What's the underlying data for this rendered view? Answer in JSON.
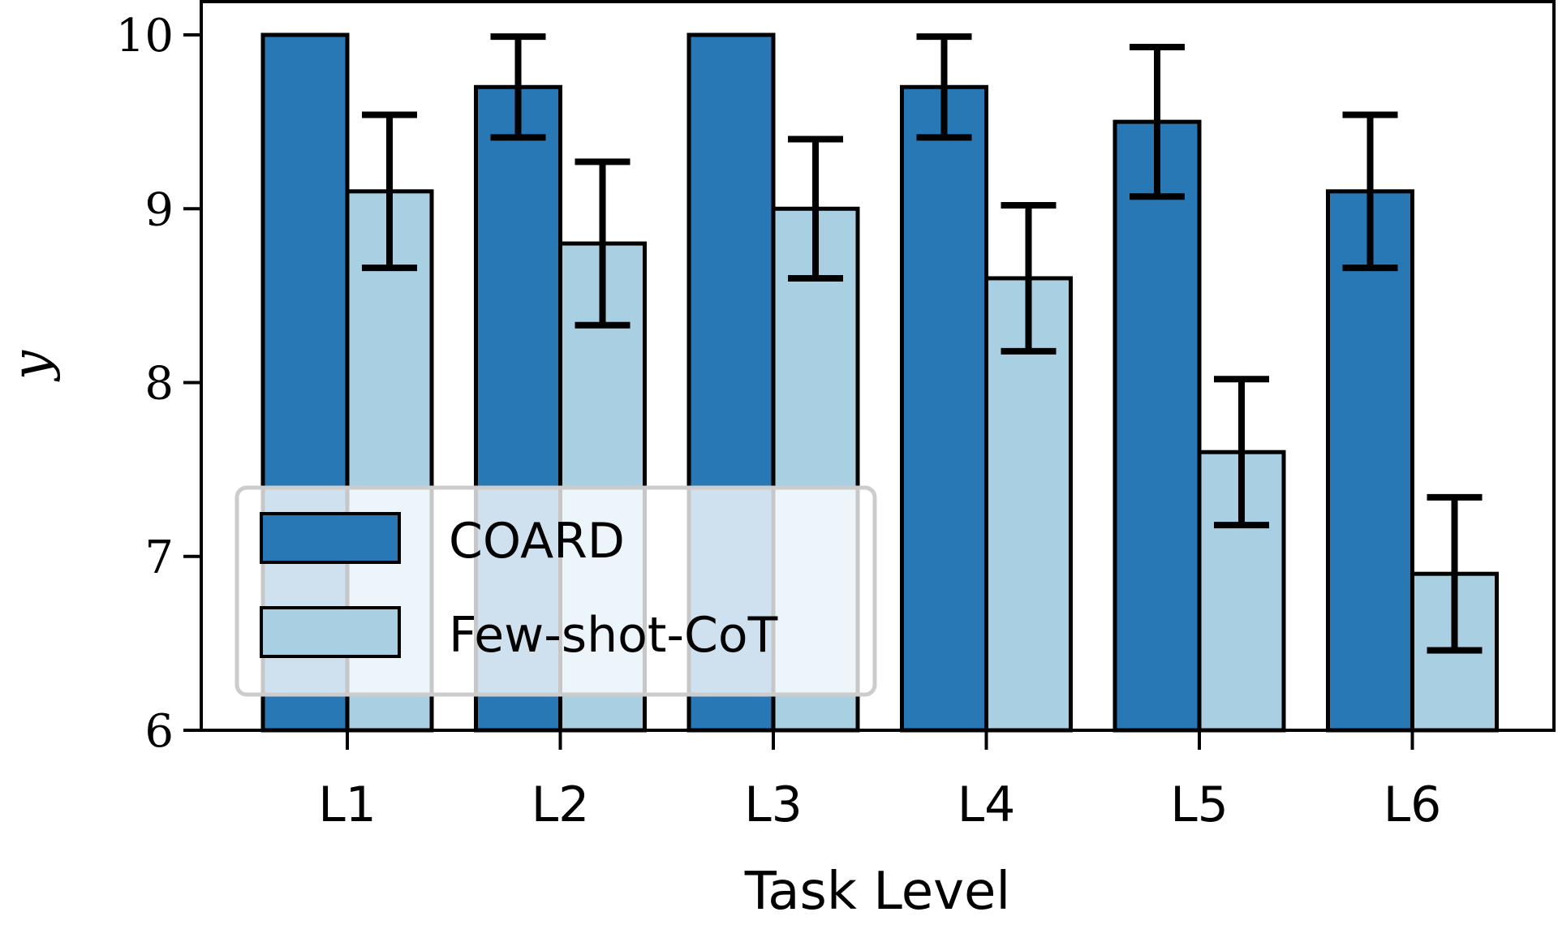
{
  "chart_data": {
    "type": "bar",
    "xlabel": "Task Level",
    "ylabel": "y",
    "ylim": [
      6,
      10
    ],
    "yticks": [
      6,
      7,
      8,
      9,
      10
    ],
    "categories": [
      "L1",
      "L2",
      "L3",
      "L4",
      "L5",
      "L6"
    ],
    "series": [
      {
        "name": "COARD",
        "color": "#2878b5",
        "values": [
          10.0,
          9.7,
          10.0,
          9.7,
          9.5,
          9.1
        ],
        "error": [
          0,
          0.29,
          0,
          0.29,
          0.43,
          0.44
        ]
      },
      {
        "name": "Few-shot-CoT",
        "color": "#a9cfe2",
        "values": [
          9.1,
          8.8,
          9.0,
          8.6,
          7.6,
          6.9
        ],
        "error": [
          0.44,
          0.47,
          0.4,
          0.42,
          0.42,
          0.44
        ]
      }
    ],
    "legend": {
      "position": "lower-left"
    },
    "grid": false
  }
}
